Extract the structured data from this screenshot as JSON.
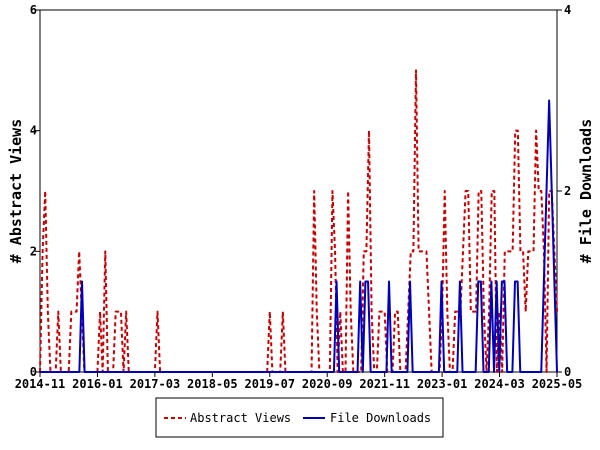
{
  "chart_data": {
    "type": "line",
    "x_ticks": [
      "2014-11",
      "2016-01",
      "2017-03",
      "2018-05",
      "2019-07",
      "2020-09",
      "2021-11",
      "2023-01",
      "2024-03",
      "2025-05"
    ],
    "x_range": [
      "2014-11",
      "2025-05"
    ],
    "left_axis": {
      "label": "# Abstract Views",
      "range": [
        0,
        6
      ],
      "ticks": [
        "0",
        "2",
        "4",
        "6"
      ]
    },
    "right_axis": {
      "label": "# File Downloads",
      "range": [
        0,
        4
      ],
      "ticks": [
        "0",
        "2",
        "4"
      ]
    },
    "legend": {
      "position": "bottom-center"
    },
    "series": [
      {
        "name": "Abstract Views",
        "axis": "left",
        "color": "#cc0000",
        "style": "dashed",
        "values": [
          0,
          2,
          3,
          1,
          0,
          0,
          0,
          1,
          0,
          0,
          0,
          0,
          1,
          1,
          1,
          2,
          1,
          0,
          0,
          0,
          0,
          0,
          0,
          1,
          0,
          2,
          0,
          0,
          0,
          1,
          1,
          1,
          0,
          1,
          0,
          0,
          0,
          0,
          0,
          0,
          0,
          0,
          0,
          0,
          0,
          1,
          0,
          0,
          0,
          0,
          0,
          0,
          0,
          0,
          0,
          0,
          0,
          0,
          0,
          0,
          0,
          0,
          0,
          0,
          0,
          0,
          0,
          0,
          0,
          0,
          0,
          0,
          0,
          0,
          0,
          0,
          0,
          0,
          0,
          0,
          0,
          0,
          0,
          0,
          0,
          0,
          0,
          0,
          1,
          0,
          0,
          0,
          0,
          1,
          0,
          0,
          0,
          0,
          0,
          0,
          0,
          0,
          0,
          0,
          0,
          3,
          1,
          0,
          0,
          0,
          0,
          0,
          3,
          2,
          0,
          1,
          0,
          0,
          3,
          1,
          0,
          0,
          0,
          0,
          2,
          2,
          4,
          1,
          0,
          0,
          1,
          1,
          1,
          0,
          0,
          0,
          1,
          1,
          0,
          0,
          0,
          1,
          2,
          2,
          5,
          2,
          2,
          2,
          2,
          1,
          0,
          0,
          0,
          0,
          1,
          3,
          1,
          0,
          0,
          1,
          1,
          1,
          2,
          3,
          3,
          1,
          1,
          1,
          3,
          3,
          1,
          0,
          1,
          3,
          3,
          0,
          1,
          0,
          2,
          2,
          2,
          2,
          4,
          4,
          2,
          2,
          1,
          2,
          2,
          2,
          4,
          3,
          3,
          2,
          0,
          3,
          3,
          2,
          1
        ]
      },
      {
        "name": "File Downloads",
        "axis": "right",
        "color": "#0000bb",
        "style": "solid",
        "values": [
          0,
          0,
          0,
          0,
          0,
          0,
          0,
          0,
          0,
          0,
          0,
          0,
          0,
          0,
          0,
          0,
          1,
          0,
          0,
          0,
          0,
          0,
          0,
          0,
          0,
          0,
          0,
          0,
          0,
          0,
          0,
          0,
          0,
          0,
          0,
          0,
          0,
          0,
          0,
          0,
          0,
          0,
          0,
          0,
          0,
          0,
          0,
          0,
          0,
          0,
          0,
          0,
          0,
          0,
          0,
          0,
          0,
          0,
          0,
          0,
          0,
          0,
          0,
          0,
          0,
          0,
          0,
          0,
          0,
          0,
          0,
          0,
          0,
          0,
          0,
          0,
          0,
          0,
          0,
          0,
          0,
          0,
          0,
          0,
          0,
          0,
          0,
          0,
          0,
          0,
          0,
          0,
          0,
          0,
          0,
          0,
          0,
          0,
          0,
          0,
          0,
          0,
          0,
          0,
          0,
          0,
          0,
          0,
          0,
          0,
          0,
          0,
          0,
          1,
          0,
          0,
          0,
          0,
          0,
          0,
          0,
          0,
          1,
          0,
          1,
          1,
          0,
          0,
          0,
          0,
          0,
          0,
          0,
          1,
          0,
          0,
          0,
          0,
          0,
          0,
          0,
          1,
          0,
          0,
          0,
          0,
          0,
          0,
          0,
          0,
          0,
          0,
          0,
          1,
          0,
          0,
          0,
          0,
          0,
          0,
          1,
          0,
          0,
          0,
          0,
          0,
          0,
          1,
          1,
          0,
          0,
          0,
          1,
          0,
          1,
          0,
          1,
          1,
          0,
          0,
          0,
          1,
          1,
          0,
          0,
          0,
          0,
          0,
          0,
          0,
          0,
          0,
          1,
          2,
          3,
          2,
          1,
          0
        ]
      }
    ]
  }
}
